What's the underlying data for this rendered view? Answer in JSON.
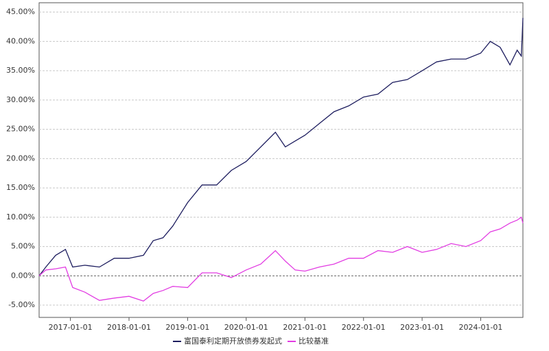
{
  "chart_data": {
    "type": "line",
    "x": [
      "2016-06-20",
      "2016-08-01",
      "2016-10-01",
      "2016-12-01",
      "2017-01-15",
      "2017-04-01",
      "2017-07-01",
      "2017-10-01",
      "2018-01-01",
      "2018-04-01",
      "2018-06-01",
      "2018-08-01",
      "2018-10-01",
      "2019-01-01",
      "2019-04-01",
      "2019-07-01",
      "2019-10-01",
      "2020-01-01",
      "2020-04-01",
      "2020-07-01",
      "2020-09-01",
      "2020-11-01",
      "2021-01-01",
      "2021-04-01",
      "2021-07-01",
      "2021-10-01",
      "2022-01-01",
      "2022-04-01",
      "2022-07-01",
      "2022-10-01",
      "2023-01-01",
      "2023-04-01",
      "2023-07-01",
      "2023-10-01",
      "2024-01-01",
      "2024-03-01",
      "2024-05-01",
      "2024-07-01",
      "2024-08-15",
      "2024-09-10",
      "2024-09-20"
    ],
    "series": [
      {
        "name": "富国泰利定期开放债券发起式",
        "color": "#1c1c5e",
        "values": [
          0,
          1.5,
          3.5,
          4.5,
          1.5,
          1.8,
          1.5,
          3,
          3,
          3.5,
          6,
          6.5,
          8.5,
          12.5,
          15.5,
          15.5,
          18,
          19.5,
          22,
          24.5,
          22,
          23,
          24,
          26,
          28,
          29,
          30.5,
          31,
          33,
          33.5,
          35,
          36.5,
          37,
          37,
          38,
          40,
          39,
          36,
          38.5,
          37.5,
          44
        ]
      },
      {
        "name": "比较基准",
        "color": "#e23be2",
        "values": [
          0,
          1,
          1.2,
          1.5,
          -2,
          -2.8,
          -4.2,
          -3.8,
          -3.5,
          -4.3,
          -3,
          -2.5,
          -1.8,
          -2,
          0.5,
          0.5,
          -0.3,
          1,
          2,
          4.3,
          2.5,
          1,
          0.8,
          1.5,
          2,
          3,
          3,
          4.3,
          4,
          5,
          4,
          4.5,
          5.5,
          5,
          6,
          7.5,
          8,
          9,
          9.5,
          10,
          9
        ]
      }
    ],
    "xlim": [
      "2016-06-20",
      "2024-09-20"
    ],
    "xticks": [
      "2017-01-01",
      "2018-01-01",
      "2019-01-01",
      "2020-01-01",
      "2021-01-01",
      "2022-01-01",
      "2023-01-01",
      "2024-01-01"
    ],
    "ylim": [
      -7.1,
      46.6
    ],
    "yticks": [
      {
        "value": -5,
        "label": "-5.00%"
      },
      {
        "value": 0,
        "label": "0.00%"
      },
      {
        "value": 5,
        "label": "5.00%"
      },
      {
        "value": 10,
        "label": "10.00%"
      },
      {
        "value": 15,
        "label": "15.00%"
      },
      {
        "value": 20,
        "label": "20.00%"
      },
      {
        "value": 25,
        "label": "25.00%"
      },
      {
        "value": 30,
        "label": "30.00%"
      },
      {
        "value": 35,
        "label": "35.00%"
      },
      {
        "value": 40,
        "label": "40.00%"
      },
      {
        "value": 45,
        "label": "45.00%"
      }
    ],
    "grid": true,
    "legend": "bottom"
  }
}
